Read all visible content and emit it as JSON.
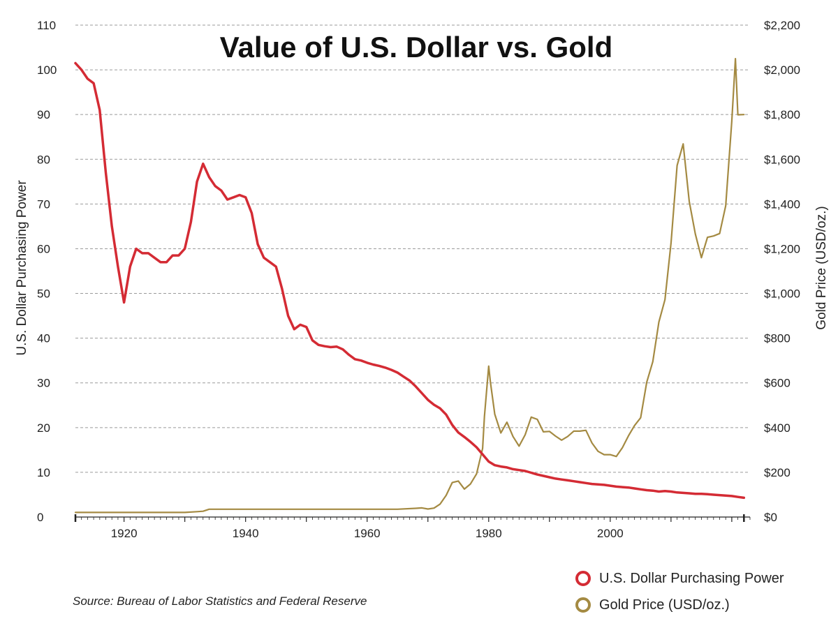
{
  "chart_data": {
    "type": "line",
    "title": "Value of U.S. Dollar vs. Gold",
    "source": "Source: Bureau of Labor Statistics and Federal Reserve",
    "xlabel": "",
    "ylabel_left": "U.S. Dollar Purchasing Power",
    "ylabel_right": "Gold Price (USD/oz.)",
    "xlim": [
      1912,
      2023
    ],
    "x_ticks": [
      1920,
      1940,
      1960,
      1980,
      2000
    ],
    "y_left_lim": [
      0,
      110
    ],
    "y_left_ticks": [
      0,
      10,
      20,
      30,
      40,
      50,
      60,
      70,
      80,
      90,
      100,
      110
    ],
    "y_right_lim": [
      0,
      2200
    ],
    "y_right_ticks": [
      "$0",
      "$200",
      "$400",
      "$600",
      "$800",
      "$1,000",
      "$1,200",
      "$1,400",
      "$1,600",
      "$1,800",
      "$2,000",
      "$2,200"
    ],
    "grid": true,
    "legend_position": "bottom-right",
    "series": [
      {
        "name": "U.S. Dollar Purchasing Power",
        "axis": "left",
        "color": "#d42b34",
        "points": [
          [
            1912,
            101.5
          ],
          [
            1913,
            100
          ],
          [
            1914,
            98
          ],
          [
            1915,
            97
          ],
          [
            1916,
            91
          ],
          [
            1917,
            77
          ],
          [
            1918,
            65
          ],
          [
            1919,
            56
          ],
          [
            1920,
            48
          ],
          [
            1921,
            56
          ],
          [
            1922,
            60
          ],
          [
            1923,
            59
          ],
          [
            1924,
            59
          ],
          [
            1925,
            58
          ],
          [
            1926,
            57
          ],
          [
            1927,
            57
          ],
          [
            1928,
            58.5
          ],
          [
            1929,
            58.5
          ],
          [
            1930,
            60
          ],
          [
            1931,
            66
          ],
          [
            1932,
            75
          ],
          [
            1933,
            79
          ],
          [
            1934,
            76
          ],
          [
            1935,
            74
          ],
          [
            1936,
            73
          ],
          [
            1937,
            71
          ],
          [
            1938,
            71.5
          ],
          [
            1939,
            72
          ],
          [
            1940,
            71.5
          ],
          [
            1941,
            68
          ],
          [
            1942,
            61
          ],
          [
            1943,
            58
          ],
          [
            1944,
            57
          ],
          [
            1945,
            56
          ],
          [
            1946,
            51
          ],
          [
            1947,
            45
          ],
          [
            1948,
            42
          ],
          [
            1949,
            43
          ],
          [
            1950,
            42.5
          ],
          [
            1951,
            39.5
          ],
          [
            1952,
            38.5
          ],
          [
            1953,
            38.2
          ],
          [
            1954,
            38
          ],
          [
            1955,
            38.1
          ],
          [
            1956,
            37.5
          ],
          [
            1957,
            36.3
          ],
          [
            1958,
            35.3
          ],
          [
            1959,
            35
          ],
          [
            1960,
            34.5
          ],
          [
            1961,
            34.1
          ],
          [
            1962,
            33.8
          ],
          [
            1963,
            33.4
          ],
          [
            1964,
            32.9
          ],
          [
            1965,
            32.3
          ],
          [
            1966,
            31.4
          ],
          [
            1967,
            30.5
          ],
          [
            1968,
            29.2
          ],
          [
            1969,
            27.7
          ],
          [
            1970,
            26.2
          ],
          [
            1971,
            25.1
          ],
          [
            1972,
            24.3
          ],
          [
            1973,
            22.9
          ],
          [
            1974,
            20.6
          ],
          [
            1975,
            18.9
          ],
          [
            1976,
            17.9
          ],
          [
            1977,
            16.8
          ],
          [
            1978,
            15.6
          ],
          [
            1979,
            14
          ],
          [
            1980,
            12.4
          ],
          [
            1981,
            11.6
          ],
          [
            1982,
            11.3
          ],
          [
            1983,
            11.1
          ],
          [
            1984,
            10.7
          ],
          [
            1985,
            10.5
          ],
          [
            1986,
            10.3
          ],
          [
            1987,
            9.9
          ],
          [
            1988,
            9.5
          ],
          [
            1989,
            9.2
          ],
          [
            1990,
            8.9
          ],
          [
            1991,
            8.6
          ],
          [
            1992,
            8.4
          ],
          [
            1993,
            8.2
          ],
          [
            1994,
            8
          ],
          [
            1995,
            7.8
          ],
          [
            1996,
            7.6
          ],
          [
            1997,
            7.4
          ],
          [
            1998,
            7.3
          ],
          [
            1999,
            7.2
          ],
          [
            2000,
            7
          ],
          [
            2001,
            6.8
          ],
          [
            2002,
            6.7
          ],
          [
            2003,
            6.6
          ],
          [
            2004,
            6.4
          ],
          [
            2005,
            6.2
          ],
          [
            2006,
            6
          ],
          [
            2007,
            5.9
          ],
          [
            2008,
            5.7
          ],
          [
            2009,
            5.8
          ],
          [
            2010,
            5.7
          ],
          [
            2011,
            5.5
          ],
          [
            2012,
            5.4
          ],
          [
            2013,
            5.3
          ],
          [
            2014,
            5.2
          ],
          [
            2015,
            5.2
          ],
          [
            2016,
            5.1
          ],
          [
            2017,
            5
          ],
          [
            2018,
            4.9
          ],
          [
            2019,
            4.8
          ],
          [
            2020,
            4.7
          ],
          [
            2021,
            4.5
          ],
          [
            2022,
            4.3
          ]
        ]
      },
      {
        "name": "Gold Price (USD/oz.)",
        "axis": "right",
        "color": "#a48a42",
        "points": [
          [
            1912,
            20.67
          ],
          [
            1920,
            20.67
          ],
          [
            1929,
            20.67
          ],
          [
            1930,
            20.67
          ],
          [
            1932,
            24
          ],
          [
            1933,
            26
          ],
          [
            1934,
            35
          ],
          [
            1940,
            35
          ],
          [
            1945,
            35
          ],
          [
            1950,
            35
          ],
          [
            1960,
            35
          ],
          [
            1965,
            35
          ],
          [
            1968,
            39
          ],
          [
            1969,
            41
          ],
          [
            1970,
            36
          ],
          [
            1971,
            40
          ],
          [
            1972,
            58
          ],
          [
            1973,
            97
          ],
          [
            1974,
            154
          ],
          [
            1975,
            161
          ],
          [
            1976,
            125
          ],
          [
            1977,
            148
          ],
          [
            1978,
            193
          ],
          [
            1979,
            307
          ],
          [
            1979.3,
            450
          ],
          [
            1980,
            675
          ],
          [
            1980.3,
            600
          ],
          [
            1981,
            460
          ],
          [
            1982,
            376
          ],
          [
            1983,
            424
          ],
          [
            1984,
            360
          ],
          [
            1985,
            317
          ],
          [
            1986,
            368
          ],
          [
            1987,
            447
          ],
          [
            1988,
            437
          ],
          [
            1989,
            381
          ],
          [
            1990,
            383
          ],
          [
            1991,
            362
          ],
          [
            1992,
            344
          ],
          [
            1993,
            360
          ],
          [
            1994,
            384
          ],
          [
            1995,
            384
          ],
          [
            1996,
            388
          ],
          [
            1997,
            331
          ],
          [
            1998,
            294
          ],
          [
            1999,
            279
          ],
          [
            2000,
            279
          ],
          [
            2001,
            271
          ],
          [
            2002,
            310
          ],
          [
            2003,
            363
          ],
          [
            2004,
            409
          ],
          [
            2005,
            444
          ],
          [
            2006,
            603
          ],
          [
            2007,
            695
          ],
          [
            2008,
            872
          ],
          [
            2009,
            972
          ],
          [
            2010,
            1225
          ],
          [
            2011,
            1572
          ],
          [
            2012,
            1669
          ],
          [
            2013,
            1411
          ],
          [
            2014,
            1266
          ],
          [
            2015,
            1160
          ],
          [
            2016,
            1251
          ],
          [
            2017,
            1257
          ],
          [
            2018,
            1268
          ],
          [
            2019,
            1392
          ],
          [
            2020,
            1770
          ],
          [
            2020.6,
            2050
          ],
          [
            2021,
            1799
          ],
          [
            2022,
            1800
          ]
        ]
      }
    ]
  }
}
